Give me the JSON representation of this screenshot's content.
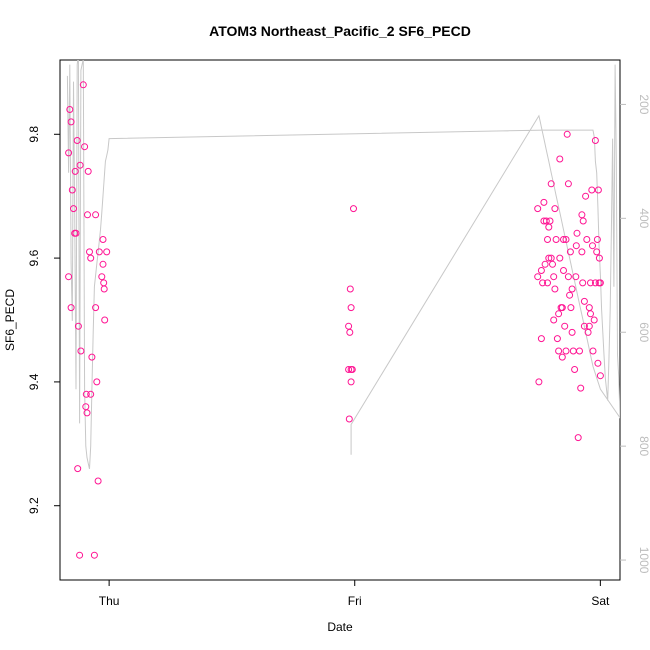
{
  "chart_data": {
    "type": "scatter",
    "title": "ATOM3 Northeast_Pacific_2 SF6_PECD",
    "xlabel": "Date",
    "ylabel": "SF6_PECD",
    "x_tick_labels": [
      "Thu",
      "Fri",
      "Sat"
    ],
    "xlim_days": [
      -0.2,
      2.08
    ],
    "ylim": [
      9.08,
      9.92
    ],
    "y_ticks": [
      9.2,
      9.4,
      9.6,
      9.8
    ],
    "y2_label": "",
    "y2_ticks": [
      200,
      400,
      600,
      800,
      1000
    ],
    "y2lim": [
      1035,
      122
    ],
    "grid": false,
    "colors": {
      "points": "#ff1493",
      "altitude_line": "#c8c8c8",
      "right_axis": "#bdbdbd"
    },
    "series": [
      {
        "kind": "points",
        "x": [
          -0.165,
          -0.155,
          -0.16,
          -0.165,
          -0.155,
          -0.15,
          -0.145,
          -0.14,
          -0.138,
          -0.135,
          -0.13,
          -0.125,
          -0.128,
          -0.12,
          -0.118,
          -0.115,
          -0.105,
          -0.1,
          -0.095,
          -0.093,
          -0.09,
          -0.088,
          -0.085,
          -0.08,
          -0.075,
          -0.07,
          -0.075,
          -0.06,
          -0.055,
          -0.055,
          -0.05,
          -0.045,
          -0.04,
          -0.03,
          -0.025,
          -0.025,
          -0.02,
          -0.018,
          -0.01,
          -0.022,
          0.975,
          0.982,
          0.975,
          0.985,
          0.98,
          0.978,
          0.985,
          0.99,
          0.985,
          0.995,
          1.745,
          1.75,
          1.76,
          1.745,
          1.765,
          1.77,
          1.76,
          1.775,
          1.77,
          1.78,
          1.785,
          1.785,
          1.79,
          1.795,
          1.8,
          1.79,
          1.805,
          1.8,
          1.81,
          1.81,
          1.815,
          1.815,
          1.82,
          1.825,
          1.83,
          1.83,
          1.835,
          1.84,
          1.835,
          1.845,
          1.845,
          1.85,
          1.85,
          1.855,
          1.86,
          1.86,
          1.865,
          1.87,
          1.87,
          1.875,
          1.88,
          1.878,
          1.885,
          1.885,
          1.89,
          1.895,
          1.9,
          1.902,
          1.905,
          1.91,
          1.915,
          1.92,
          1.925,
          1.925,
          1.93,
          1.935,
          1.94,
          1.945,
          1.95,
          1.955,
          1.955,
          1.96,
          1.965,
          1.97,
          1.975,
          1.98,
          1.985,
          1.988,
          1.99,
          1.995,
          2.0,
          2.0,
          1.992,
          1.996,
          1.98,
          1.96,
          1.968,
          1.928,
          1.935
        ],
        "y": [
          9.77,
          9.82,
          9.84,
          9.57,
          9.52,
          9.71,
          9.68,
          9.64,
          9.74,
          9.64,
          9.79,
          9.49,
          9.26,
          9.12,
          9.75,
          9.45,
          9.88,
          9.78,
          9.36,
          9.38,
          9.35,
          9.67,
          9.74,
          9.61,
          9.38,
          9.44,
          9.6,
          9.12,
          9.67,
          9.52,
          9.4,
          9.24,
          9.61,
          9.57,
          9.63,
          9.59,
          9.55,
          9.5,
          9.61,
          9.56,
          9.49,
          9.55,
          9.42,
          9.42,
          9.48,
          9.34,
          9.4,
          9.42,
          9.52,
          9.68,
          9.57,
          9.4,
          9.47,
          9.68,
          9.56,
          9.66,
          9.58,
          9.59,
          9.69,
          9.66,
          9.56,
          9.63,
          9.6,
          9.66,
          9.72,
          9.65,
          9.59,
          9.6,
          9.57,
          9.5,
          9.55,
          9.68,
          9.63,
          9.47,
          9.45,
          9.51,
          9.6,
          9.52,
          9.76,
          9.44,
          9.52,
          9.63,
          9.58,
          9.49,
          9.45,
          9.63,
          9.8,
          9.72,
          9.57,
          9.54,
          9.52,
          9.61,
          9.48,
          9.55,
          9.45,
          9.42,
          9.57,
          9.62,
          9.64,
          9.31,
          9.45,
          9.39,
          9.61,
          9.67,
          9.66,
          9.53,
          9.7,
          9.63,
          9.48,
          9.52,
          9.49,
          9.56,
          9.71,
          9.45,
          9.5,
          9.79,
          9.61,
          9.63,
          9.43,
          9.56,
          9.41,
          9.56,
          9.71,
          9.6,
          9.56,
          9.51,
          9.62,
          9.56,
          9.49
        ]
      },
      {
        "kind": "altitude_line",
        "x": [
          -0.17,
          -0.165,
          -0.16,
          -0.155,
          -0.15,
          -0.145,
          -0.14,
          -0.135,
          -0.13,
          -0.125,
          -0.12,
          -0.115,
          -0.11,
          -0.105,
          -0.1,
          -0.095,
          -0.09,
          -0.085,
          -0.08,
          -0.075,
          -0.07,
          -0.065,
          -0.06,
          -0.055,
          -0.05,
          -0.045,
          -0.04,
          -0.035,
          -0.03,
          -0.025,
          -0.02,
          -0.015,
          -0.01,
          -0.005,
          0.0,
          1.77,
          1.97,
          1.972,
          1.976,
          1.978,
          1.98,
          1.985,
          1.99,
          1.995,
          2.0,
          2.005,
          2.01,
          2.015,
          2.02,
          2.025,
          2.03,
          2.035,
          2.04,
          2.045,
          2.05,
          2.055,
          2.06,
          2.065,
          2.07,
          2.075,
          2.08,
          2.0,
          1.985,
          1.97,
          1.96,
          1.95,
          1.94,
          1.93,
          1.92,
          1.91,
          1.9,
          1.89,
          1.88,
          1.87,
          1.86,
          1.85,
          1.84,
          1.83,
          1.82,
          1.81,
          1.8,
          1.79,
          1.78,
          1.77,
          1.76,
          1.755,
          1.75,
          0.985,
          0.985
        ],
        "y": [
          150,
          320,
          130,
          480,
          580,
          160,
          390,
          700,
          130,
          110,
          760,
          140,
          130,
          120,
          700,
          800,
          820,
          830,
          840,
          800,
          700,
          600,
          520,
          500,
          480,
          460,
          440,
          420,
          390,
          360,
          330,
          300,
          290,
          280,
          260,
          245,
          245,
          250,
          260,
          280,
          300,
          320,
          380,
          450,
          500,
          560,
          600,
          640,
          680,
          700,
          720,
          650,
          560,
          420,
          260,
          520,
          130,
          300,
          640,
          680,
          750,
          700,
          680,
          660,
          640,
          620,
          600,
          580,
          560,
          540,
          520,
          500,
          480,
          460,
          440,
          420,
          400,
          380,
          360,
          340,
          320,
          300,
          280,
          260,
          240,
          230,
          220,
          762,
          815
        ]
      }
    ]
  }
}
